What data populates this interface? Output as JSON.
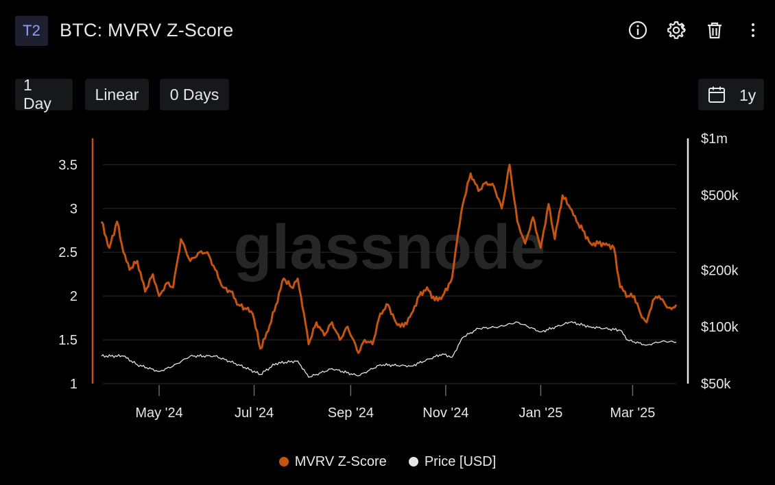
{
  "header": {
    "badge": "T2",
    "title": "BTC: MVRV Z-Score",
    "icons": [
      "info-icon",
      "gear-icon",
      "trash-icon",
      "more-vertical-icon"
    ]
  },
  "toolbar": {
    "resolution": "1 Day",
    "scale": "Linear",
    "average": "0 Days",
    "range": "1y",
    "range_icon": "calendar-icon"
  },
  "watermark": "glassnode",
  "colors": {
    "zscore": "#c4540f",
    "price": "#e6e6e6",
    "grid": "#1e1e1e",
    "background": "#000000"
  },
  "legend": [
    {
      "label": "MVRV Z-Score",
      "color": "#c4540f"
    },
    {
      "label": "Price [USD]",
      "color": "#e6e6e6"
    }
  ],
  "chart_data": {
    "type": "line",
    "x_ticks": [
      {
        "label": "May '24",
        "date": "2024-05-01"
      },
      {
        "label": "Jul '24",
        "date": "2024-07-01"
      },
      {
        "label": "Sep '24",
        "date": "2024-09-01"
      },
      {
        "label": "Nov '24",
        "date": "2024-11-01"
      },
      {
        "label": "Jan '25",
        "date": "2025-01-01"
      },
      {
        "label": "Mar '25",
        "date": "2025-03-01"
      }
    ],
    "xlim": [
      "2024-03-25",
      "2025-03-29"
    ],
    "y_left": {
      "ticks": [
        1,
        1.5,
        2,
        2.5,
        3,
        3.5
      ],
      "tick_labels": [
        "1",
        "1.5",
        "2",
        "2.5",
        "3",
        "3.5"
      ],
      "lim": [
        1,
        3.8
      ]
    },
    "y_right": {
      "scale": "log",
      "ticks": [
        50000,
        100000,
        200000,
        500000,
        1000000
      ],
      "tick_labels": [
        "$50k",
        "$100k",
        "$200k",
        "$500k",
        "$1m"
      ],
      "lim": [
        50000,
        1000000
      ]
    },
    "grid": true,
    "series": [
      {
        "name": "MVRV Z-Score",
        "axis": "left",
        "x": [
          "2024-03-25",
          "2024-03-30",
          "2024-04-04",
          "2024-04-08",
          "2024-04-12",
          "2024-04-17",
          "2024-04-22",
          "2024-04-27",
          "2024-05-01",
          "2024-05-06",
          "2024-05-10",
          "2024-05-15",
          "2024-05-21",
          "2024-05-27",
          "2024-06-01",
          "2024-06-06",
          "2024-06-11",
          "2024-06-16",
          "2024-06-21",
          "2024-06-26",
          "2024-06-30",
          "2024-07-05",
          "2024-07-10",
          "2024-07-15",
          "2024-07-20",
          "2024-07-25",
          "2024-07-29",
          "2024-08-02",
          "2024-08-05",
          "2024-08-10",
          "2024-08-15",
          "2024-08-20",
          "2024-08-25",
          "2024-08-30",
          "2024-09-06",
          "2024-09-10",
          "2024-09-15",
          "2024-09-20",
          "2024-09-25",
          "2024-09-30",
          "2024-10-05",
          "2024-10-10",
          "2024-10-15",
          "2024-10-20",
          "2024-10-25",
          "2024-10-30",
          "2024-11-05",
          "2024-11-08",
          "2024-11-12",
          "2024-11-17",
          "2024-11-22",
          "2024-11-27",
          "2024-12-02",
          "2024-12-07",
          "2024-12-12",
          "2024-12-17",
          "2024-12-22",
          "2024-12-27",
          "2025-01-01",
          "2025-01-06",
          "2025-01-10",
          "2025-01-15",
          "2025-01-20",
          "2025-01-24",
          "2025-01-28",
          "2025-02-02",
          "2025-02-07",
          "2025-02-12",
          "2025-02-17",
          "2025-02-21",
          "2025-02-26",
          "2025-03-02",
          "2025-03-06",
          "2025-03-10",
          "2025-03-14",
          "2025-03-18",
          "2025-03-22",
          "2025-03-26",
          "2025-03-29"
        ],
        "values": [
          2.85,
          2.55,
          2.85,
          2.5,
          2.3,
          2.4,
          2.05,
          2.25,
          2.0,
          2.15,
          2.1,
          2.65,
          2.4,
          2.5,
          2.5,
          2.3,
          2.1,
          2.05,
          1.9,
          1.85,
          1.8,
          1.4,
          1.6,
          1.9,
          2.2,
          2.1,
          2.2,
          1.8,
          1.45,
          1.7,
          1.55,
          1.7,
          1.5,
          1.65,
          1.35,
          1.5,
          1.45,
          1.8,
          1.9,
          1.7,
          1.65,
          1.8,
          2.0,
          2.1,
          1.95,
          2.0,
          2.2,
          2.6,
          3.05,
          3.4,
          3.2,
          3.3,
          3.25,
          3.0,
          3.5,
          2.85,
          2.6,
          2.9,
          2.55,
          3.05,
          2.65,
          3.15,
          3.0,
          2.85,
          2.75,
          2.6,
          2.6,
          2.6,
          2.55,
          2.1,
          2.0,
          2.0,
          1.8,
          1.7,
          1.95,
          2.0,
          1.9,
          1.85,
          1.9
        ]
      },
      {
        "name": "Price [USD]",
        "axis": "right",
        "x": [
          "2024-03-25",
          "2024-04-08",
          "2024-04-17",
          "2024-05-01",
          "2024-05-10",
          "2024-05-21",
          "2024-06-06",
          "2024-06-21",
          "2024-07-05",
          "2024-07-15",
          "2024-07-29",
          "2024-08-05",
          "2024-08-20",
          "2024-09-06",
          "2024-09-20",
          "2024-10-10",
          "2024-10-30",
          "2024-11-05",
          "2024-11-12",
          "2024-11-22",
          "2024-12-05",
          "2024-12-17",
          "2025-01-01",
          "2025-01-20",
          "2025-02-02",
          "2025-02-21",
          "2025-02-26",
          "2025-03-10",
          "2025-03-20",
          "2025-03-29"
        ],
        "values": [
          70000,
          70000,
          63000,
          58000,
          62000,
          70000,
          70000,
          63000,
          56000,
          64000,
          66000,
          54000,
          60000,
          55000,
          63000,
          62000,
          72000,
          69000,
          88000,
          98000,
          100000,
          106000,
          94000,
          106000,
          100000,
          96000,
          85000,
          80000,
          84000,
          83000
        ]
      }
    ]
  }
}
